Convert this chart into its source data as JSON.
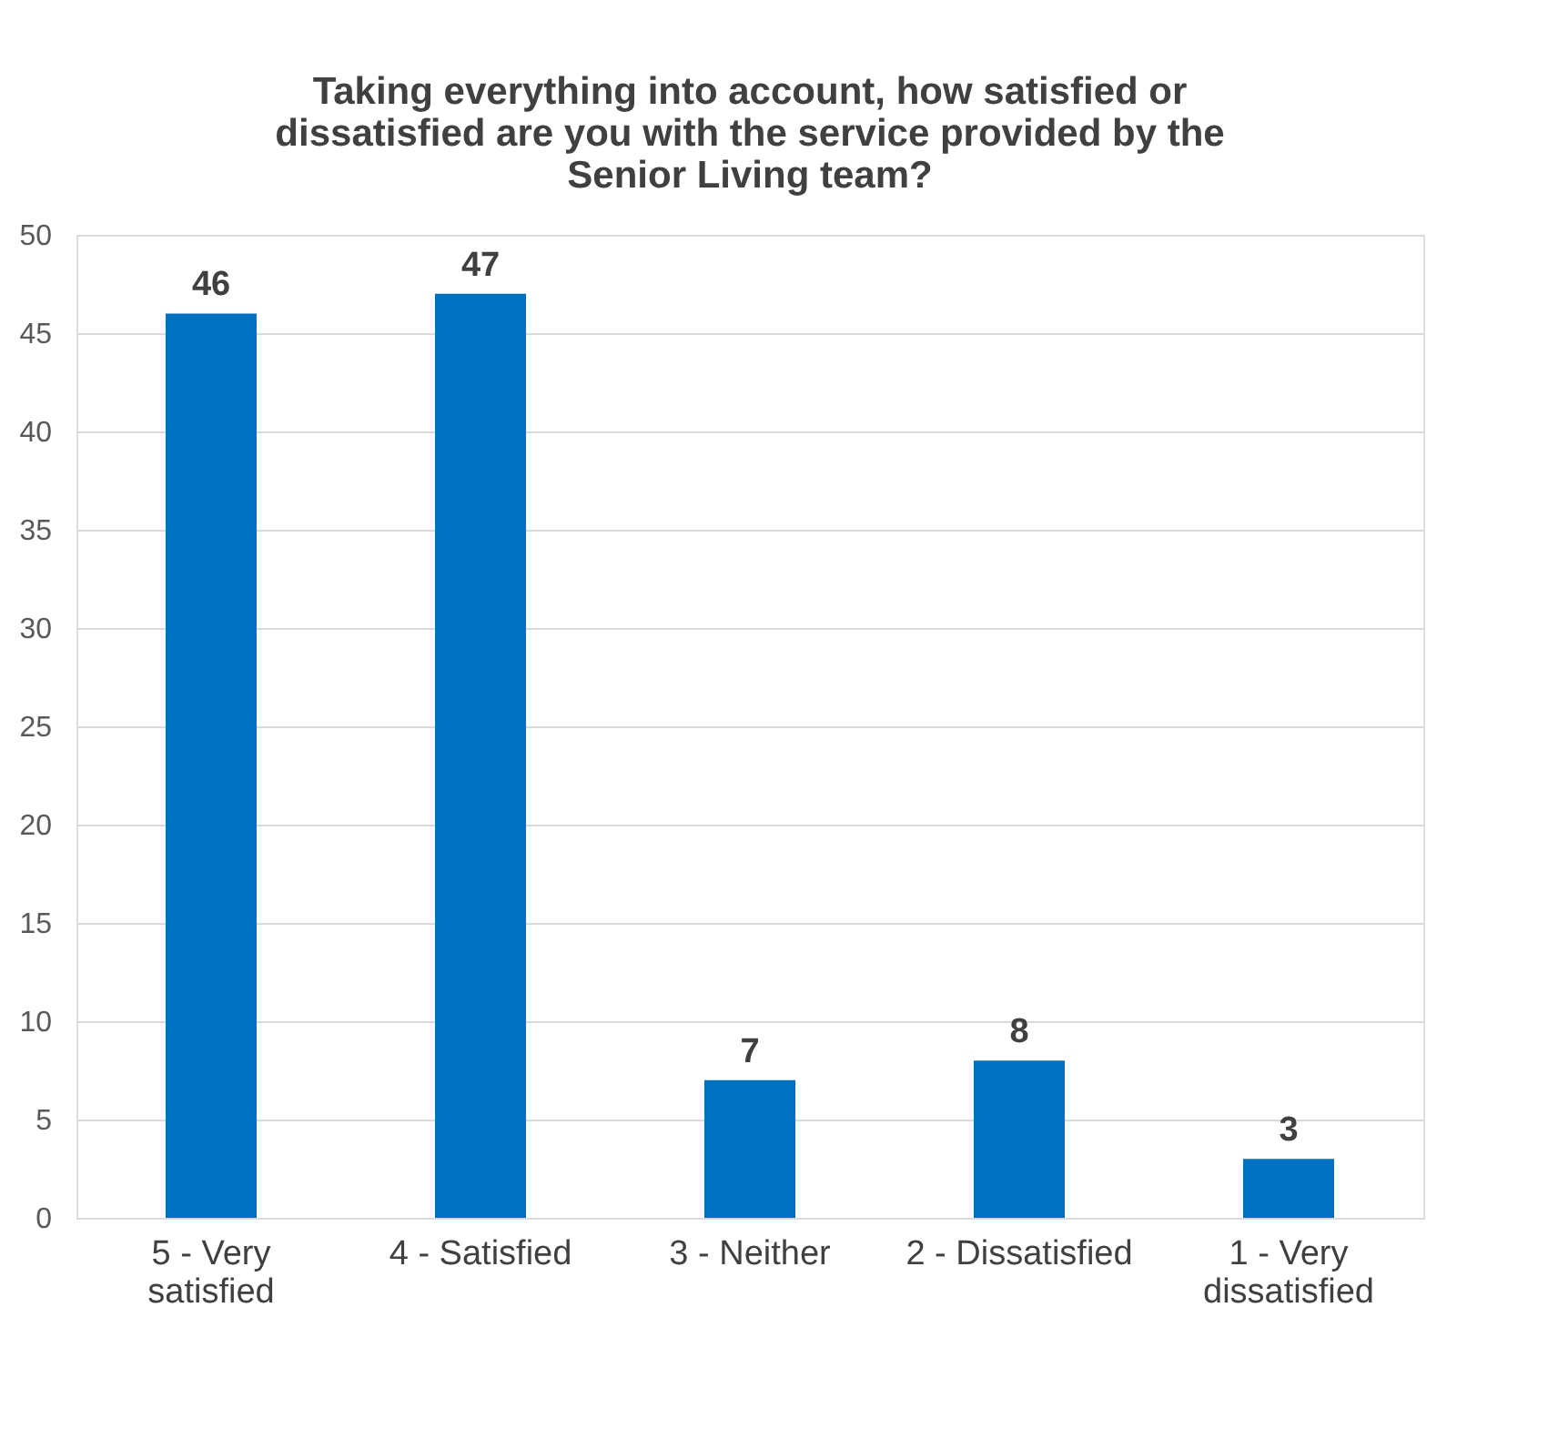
{
  "chart_data": {
    "type": "bar",
    "title": "Taking everything into account, how satisfied or dissatisfied are you with the service provided by the Senior Living team?",
    "categories": [
      "5 - Very satisfied",
      "4 - Satisfied",
      "3 - Neither",
      "2 - Dissatisfied",
      "1 - Very dissatisfied"
    ],
    "values": [
      46,
      47,
      7,
      8,
      3
    ],
    "color": "#0070c0",
    "ylim": [
      0,
      50
    ],
    "yticks": [
      0,
      5,
      10,
      15,
      20,
      25,
      30,
      35,
      40,
      45,
      50
    ],
    "grid": "y",
    "data_labels": true
  }
}
